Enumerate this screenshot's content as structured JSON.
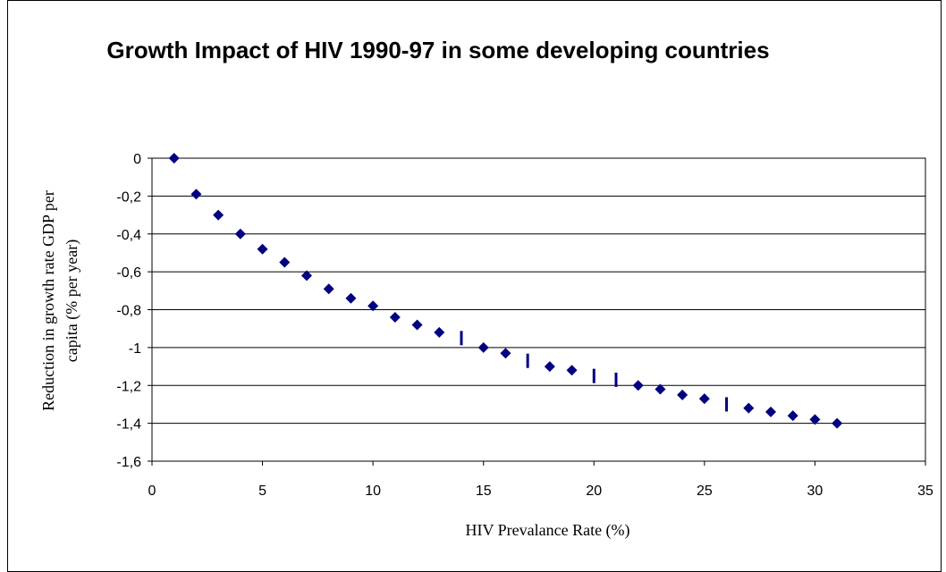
{
  "chart_data": {
    "type": "scatter",
    "title": "Growth Impact of HIV 1990-97 in some developing countries",
    "xlabel": "HIV Prevalance Rate (%)",
    "ylabel_line1": "Reduction in growth rate GDP per",
    "ylabel_line2": "capita (% per year)",
    "xlim": [
      0,
      35
    ],
    "ylim": [
      -1.6,
      0
    ],
    "xticks": [
      0,
      5,
      10,
      15,
      20,
      25,
      30,
      35
    ],
    "yticks": [
      0,
      -0.2,
      -0.4,
      -0.6,
      -0.8,
      -1,
      -1.2,
      -1.4,
      -1.6
    ],
    "ytick_labels": [
      "0",
      "-0,2",
      "-0,4",
      "-0,6",
      "-0,8",
      "-1",
      "-1,2",
      "-1,4",
      "-1,6"
    ],
    "grid": "horizontal",
    "marker_color": "#000080",
    "points": [
      {
        "x": 1,
        "y": 0,
        "marker": "diamond"
      },
      {
        "x": 2,
        "y": -0.19,
        "marker": "diamond"
      },
      {
        "x": 3,
        "y": -0.3,
        "marker": "diamond"
      },
      {
        "x": 4,
        "y": -0.4,
        "marker": "diamond"
      },
      {
        "x": 5,
        "y": -0.48,
        "marker": "diamond"
      },
      {
        "x": 6,
        "y": -0.55,
        "marker": "diamond"
      },
      {
        "x": 7,
        "y": -0.62,
        "marker": "diamond"
      },
      {
        "x": 8,
        "y": -0.69,
        "marker": "diamond"
      },
      {
        "x": 9,
        "y": -0.74,
        "marker": "diamond"
      },
      {
        "x": 10,
        "y": -0.78,
        "marker": "diamond"
      },
      {
        "x": 11,
        "y": -0.84,
        "marker": "diamond"
      },
      {
        "x": 12,
        "y": -0.88,
        "marker": "diamond"
      },
      {
        "x": 13,
        "y": -0.92,
        "marker": "diamond"
      },
      {
        "x": 14,
        "y": -0.95,
        "marker": "dash"
      },
      {
        "x": 15,
        "y": -1.0,
        "marker": "diamond"
      },
      {
        "x": 16,
        "y": -1.03,
        "marker": "diamond"
      },
      {
        "x": 17,
        "y": -1.07,
        "marker": "dash"
      },
      {
        "x": 18,
        "y": -1.1,
        "marker": "diamond"
      },
      {
        "x": 19,
        "y": -1.12,
        "marker": "diamond"
      },
      {
        "x": 20,
        "y": -1.15,
        "marker": "dash"
      },
      {
        "x": 21,
        "y": -1.17,
        "marker": "dash"
      },
      {
        "x": 22,
        "y": -1.2,
        "marker": "diamond"
      },
      {
        "x": 23,
        "y": -1.22,
        "marker": "diamond"
      },
      {
        "x": 24,
        "y": -1.25,
        "marker": "diamond"
      },
      {
        "x": 25,
        "y": -1.27,
        "marker": "diamond"
      },
      {
        "x": 26,
        "y": -1.3,
        "marker": "dash"
      },
      {
        "x": 27,
        "y": -1.32,
        "marker": "diamond"
      },
      {
        "x": 28,
        "y": -1.34,
        "marker": "diamond"
      },
      {
        "x": 29,
        "y": -1.36,
        "marker": "diamond"
      },
      {
        "x": 30,
        "y": -1.38,
        "marker": "diamond"
      },
      {
        "x": 31,
        "y": -1.4,
        "marker": "diamond"
      }
    ]
  }
}
